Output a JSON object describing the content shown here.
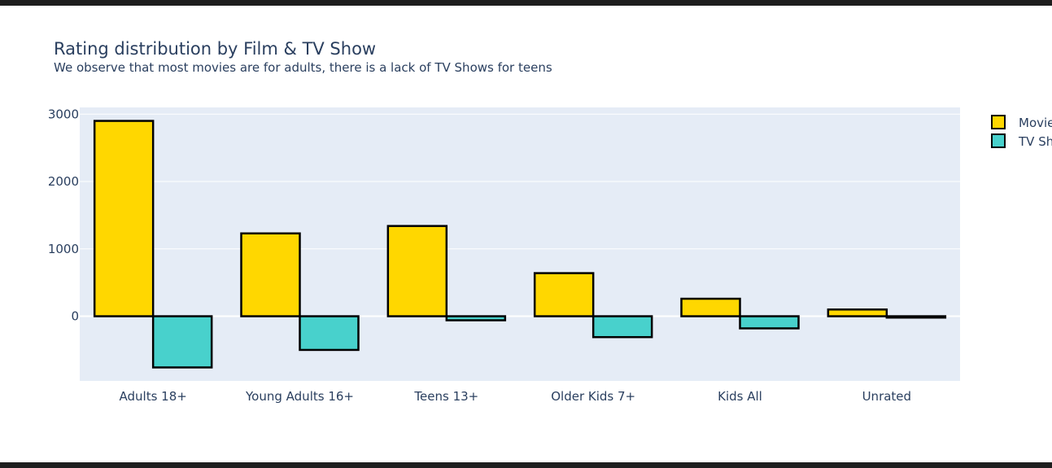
{
  "chart_data": {
    "type": "bar",
    "title": "Rating distribution by Film & TV Show",
    "subtitle": "We observe that most movies are for adults, there is a lack of TV Shows for teens",
    "categories": [
      "Adults 18+",
      "Young Adults 16+",
      "Teens 13+",
      "Older Kids 7+",
      "Kids All",
      "Unrated"
    ],
    "series": [
      {
        "name": "Movie",
        "color": "#FFD700",
        "values": [
          2900,
          1230,
          1340,
          640,
          260,
          100
        ]
      },
      {
        "name": "TV Show",
        "color": "#48D1CC",
        "values": [
          -760,
          -500,
          -60,
          -310,
          -180,
          -20
        ]
      }
    ],
    "yticks": [
      3000,
      2000,
      1000,
      0
    ],
    "ylim": [
      -960,
      3100
    ],
    "grid": true,
    "legend_position": "top-right",
    "bar_outline_color": "#000000",
    "plot_background": "#E5ECF6"
  }
}
